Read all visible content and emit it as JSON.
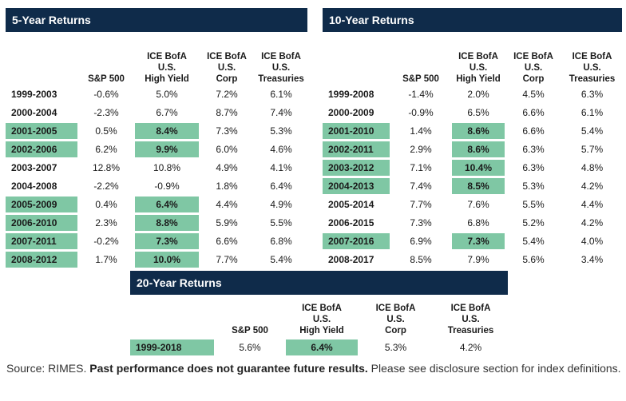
{
  "columns": {
    "sp500": [
      "S&P 500"
    ],
    "hy": [
      "ICE BofA",
      "U.S.",
      "High Yield"
    ],
    "corp": [
      "ICE BofA",
      "U.S.",
      "Corp"
    ],
    "treas": [
      "ICE BofA",
      "U.S.",
      "Treasuries"
    ]
  },
  "chart_data": [
    {
      "type": "table",
      "title": "5-Year Returns",
      "columns": [
        "S&P 500",
        "ICE BofA U.S. High Yield",
        "ICE BofA U.S. Corp",
        "ICE BofA U.S. Treasuries"
      ],
      "rows": [
        {
          "period": "1999-2003",
          "sp500": "-0.6%",
          "hy": "5.0%",
          "corp": "7.2%",
          "treas": "6.1%",
          "highlight": false
        },
        {
          "period": "2000-2004",
          "sp500": "-2.3%",
          "hy": "6.7%",
          "corp": "8.7%",
          "treas": "7.4%",
          "highlight": false
        },
        {
          "period": "2001-2005",
          "sp500": "0.5%",
          "hy": "8.4%",
          "corp": "7.3%",
          "treas": "5.3%",
          "highlight": true
        },
        {
          "period": "2002-2006",
          "sp500": "6.2%",
          "hy": "9.9%",
          "corp": "6.0%",
          "treas": "4.6%",
          "highlight": true
        },
        {
          "period": "2003-2007",
          "sp500": "12.8%",
          "hy": "10.8%",
          "corp": "4.9%",
          "treas": "4.1%",
          "highlight": false
        },
        {
          "period": "2004-2008",
          "sp500": "-2.2%",
          "hy": "-0.9%",
          "corp": "1.8%",
          "treas": "6.4%",
          "highlight": false
        },
        {
          "period": "2005-2009",
          "sp500": "0.4%",
          "hy": "6.4%",
          "corp": "4.4%",
          "treas": "4.9%",
          "highlight": true
        },
        {
          "period": "2006-2010",
          "sp500": "2.3%",
          "hy": "8.8%",
          "corp": "5.9%",
          "treas": "5.5%",
          "highlight": true
        },
        {
          "period": "2007-2011",
          "sp500": "-0.2%",
          "hy": "7.3%",
          "corp": "6.6%",
          "treas": "6.8%",
          "highlight": true
        },
        {
          "period": "2008-2012",
          "sp500": "1.7%",
          "hy": "10.0%",
          "corp": "7.7%",
          "treas": "5.4%",
          "highlight": true
        }
      ]
    },
    {
      "type": "table",
      "title": "10-Year Returns",
      "columns": [
        "S&P 500",
        "ICE BofA U.S. High Yield",
        "ICE BofA U.S. Corp",
        "ICE BofA U.S. Treasuries"
      ],
      "rows": [
        {
          "period": "1999-2008",
          "sp500": "-1.4%",
          "hy": "2.0%",
          "corp": "4.5%",
          "treas": "6.3%",
          "highlight": false
        },
        {
          "period": "2000-2009",
          "sp500": "-0.9%",
          "hy": "6.5%",
          "corp": "6.6%",
          "treas": "6.1%",
          "highlight": false
        },
        {
          "period": "2001-2010",
          "sp500": "1.4%",
          "hy": "8.6%",
          "corp": "6.6%",
          "treas": "5.4%",
          "highlight": true
        },
        {
          "period": "2002-2011",
          "sp500": "2.9%",
          "hy": "8.6%",
          "corp": "6.3%",
          "treas": "5.7%",
          "highlight": true
        },
        {
          "period": "2003-2012",
          "sp500": "7.1%",
          "hy": "10.4%",
          "corp": "6.3%",
          "treas": "4.8%",
          "highlight": true
        },
        {
          "period": "2004-2013",
          "sp500": "7.4%",
          "hy": "8.5%",
          "corp": "5.3%",
          "treas": "4.2%",
          "highlight": true
        },
        {
          "period": "2005-2014",
          "sp500": "7.7%",
          "hy": "7.6%",
          "corp": "5.5%",
          "treas": "4.4%",
          "highlight": false
        },
        {
          "period": "2006-2015",
          "sp500": "7.3%",
          "hy": "6.8%",
          "corp": "5.2%",
          "treas": "4.2%",
          "highlight": false
        },
        {
          "period": "2007-2016",
          "sp500": "6.9%",
          "hy": "7.3%",
          "corp": "5.4%",
          "treas": "4.0%",
          "highlight": true
        },
        {
          "period": "2008-2017",
          "sp500": "8.5%",
          "hy": "7.9%",
          "corp": "5.6%",
          "treas": "3.4%",
          "highlight": false
        }
      ]
    },
    {
      "type": "table",
      "title": "20-Year Returns",
      "columns": [
        "S&P 500",
        "ICE BofA U.S. High Yield",
        "ICE BofA U.S. Corp",
        "ICE BofA U.S. Treasuries"
      ],
      "rows": [
        {
          "period": "1999-2018",
          "sp500": "5.6%",
          "hy": "6.4%",
          "corp": "5.3%",
          "treas": "4.2%",
          "highlight": true
        }
      ]
    }
  ],
  "footer": {
    "source": "Source: RIMES. ",
    "warning": "Past performance does not guarantee future results.",
    "note": " Please see disclosure section for index definitions."
  },
  "colors": {
    "header_bg": "#0f2b4a",
    "highlight": "#7fc7a4"
  }
}
